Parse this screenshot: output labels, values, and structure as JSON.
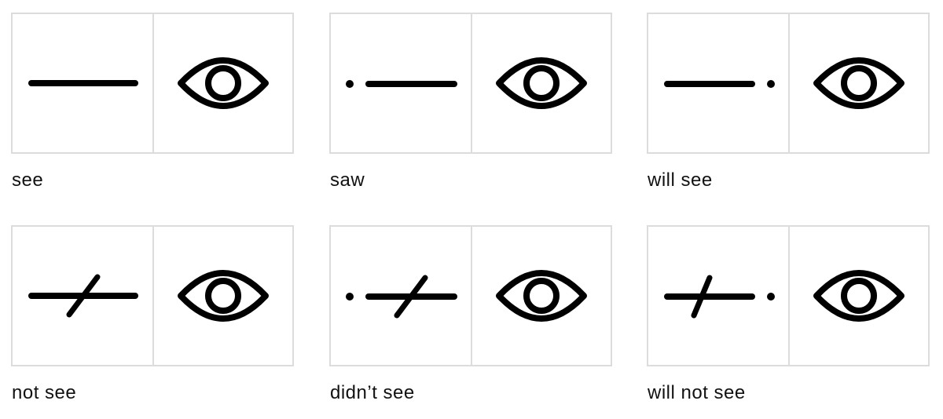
{
  "cards": [
    {
      "caption": "see",
      "symbol": "line",
      "icon": "eye-icon"
    },
    {
      "caption": "saw",
      "symbol": "dot-line",
      "icon": "eye-icon"
    },
    {
      "caption": "will see",
      "symbol": "line-dot",
      "icon": "eye-icon"
    },
    {
      "caption": "not see",
      "symbol": "line-slash",
      "icon": "eye-icon"
    },
    {
      "caption": "didn’t see",
      "symbol": "dot-line-slash",
      "icon": "eye-icon"
    },
    {
      "caption": "will not see",
      "symbol": "line-slash-dot",
      "icon": "eye-icon"
    }
  ],
  "colors": {
    "border": "#dcdcdc",
    "ink": "#000000",
    "text": "#111111"
  }
}
